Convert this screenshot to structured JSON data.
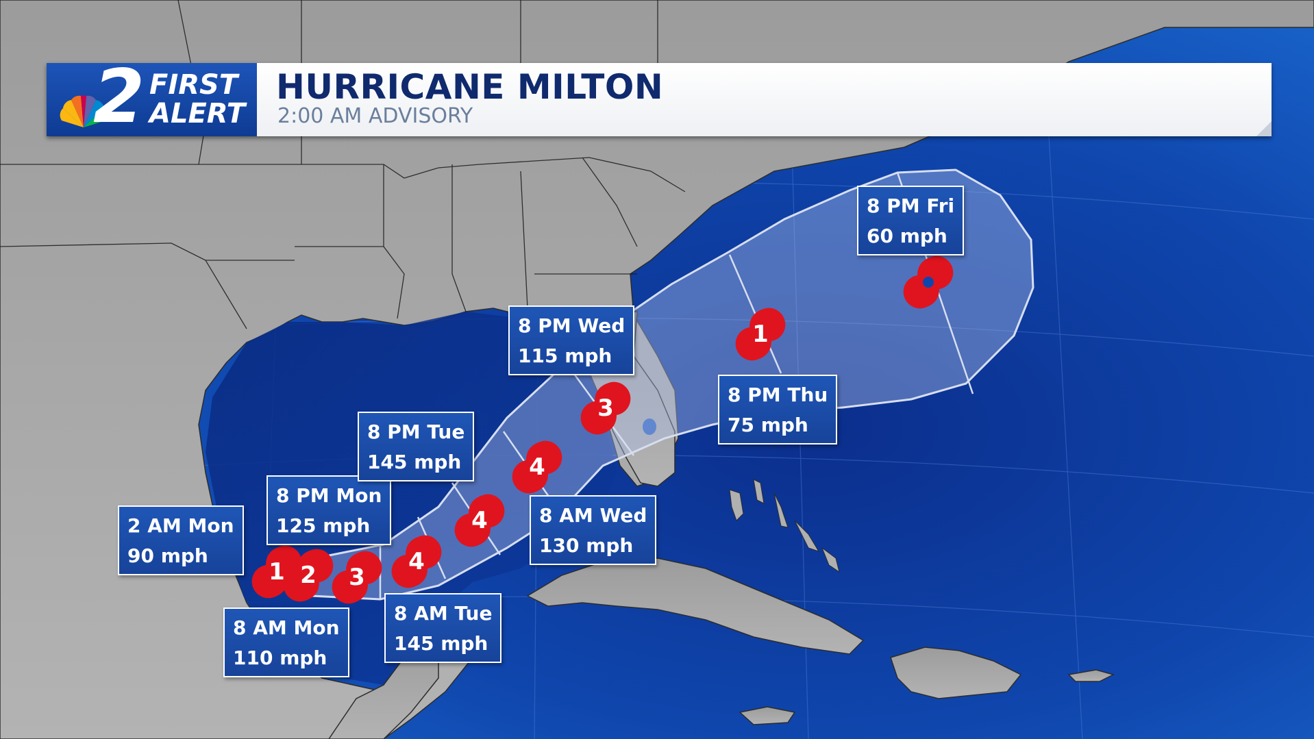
{
  "header": {
    "logo_number": "2",
    "logo_line1": "FIRST",
    "logo_line2": "ALERT",
    "title": "HURRICANE MILTON",
    "subtitle": "2:00 AM ADVISORY"
  },
  "colors": {
    "ocean": "#0a3a9a",
    "land": "#a9a9a9",
    "cone_fill": "#8aa0d8",
    "label_bg": "#1d4fb0",
    "marker_red": "#e0141e"
  },
  "icons": {
    "logo": "nbc-peacock-icon",
    "storm": "hurricane-icon",
    "tropical_storm": "tropical-storm-icon"
  },
  "forecast_points": [
    {
      "time": "2 AM Mon",
      "wind": "90 mph",
      "category": "1",
      "icon": "hurricane-icon"
    },
    {
      "time": "8 AM Mon",
      "wind": "110 mph",
      "category": "2",
      "icon": "hurricane-icon"
    },
    {
      "time": "8 PM Mon",
      "wind": "125 mph",
      "category": "3",
      "icon": "hurricane-icon"
    },
    {
      "time": "8 AM Tue",
      "wind": "145 mph",
      "category": "4",
      "icon": "hurricane-icon"
    },
    {
      "time": "8 PM Tue",
      "wind": "145 mph",
      "category": "4",
      "icon": "hurricane-icon"
    },
    {
      "time": "8 AM Wed",
      "wind": "130 mph",
      "category": "4",
      "icon": "hurricane-icon"
    },
    {
      "time": "8 PM Wed",
      "wind": "115 mph",
      "category": "3",
      "icon": "hurricane-icon"
    },
    {
      "time": "8 PM Thu",
      "wind": "75 mph",
      "category": "1",
      "icon": "hurricane-icon"
    },
    {
      "time": "8 PM Fri",
      "wind": "60 mph",
      "category": "",
      "icon": "tropical-storm-icon"
    }
  ]
}
